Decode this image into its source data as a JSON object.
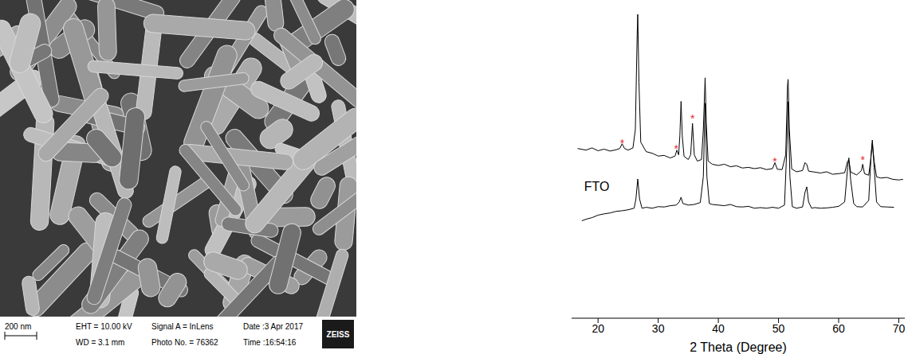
{
  "image": {
    "type": "micrograph",
    "scale_bar": "200 nm",
    "info": [
      [
        "EHT = 10.00 kV",
        "WD = 3.1 mm"
      ],
      [
        "Signal A = InLens",
        "Photo No. = 76362"
      ],
      [
        "Date :3 Apr 2017",
        "Time :16:54:16"
      ]
    ],
    "logo": "ZEISS"
  },
  "chart_data": {
    "type": "line",
    "x_label": "2 Theta (Degree)",
    "xlim": [
      15.6,
      71
    ],
    "xticks": [
      20,
      30,
      40,
      50,
      60,
      70
    ],
    "ylim": [
      0,
      100
    ],
    "grid": false,
    "tick_labels": "x",
    "series": [
      {
        "color": "#000000",
        "x": [
          16.6,
          18,
          19,
          20,
          21,
          22,
          23,
          23.6,
          24,
          24.4,
          25,
          25.8,
          26.2,
          26.5,
          26.6,
          26.8,
          27.1,
          28,
          29,
          30,
          31,
          32,
          32.8,
          33.1,
          33.4,
          33.6,
          33.8,
          34,
          34.3,
          35,
          35.4,
          35.7,
          36,
          36.5,
          37.2,
          37.5,
          37.8,
          38,
          38.3,
          39,
          40,
          41,
          42,
          43,
          44,
          45,
          46,
          47,
          48,
          49,
          49.4,
          49.8,
          50.6,
          51.2,
          51.5,
          51.6,
          51.8,
          52.2,
          53,
          54,
          54.4,
          54.7,
          55,
          56,
          57,
          58,
          59,
          60,
          61,
          61.5,
          61.7,
          62,
          63,
          63.8,
          64,
          64.3,
          65,
          65.3,
          65.6,
          65.9,
          66.3,
          67,
          68,
          69,
          70,
          70.7
        ],
        "values": [
          54,
          53.5,
          54.2,
          53.3,
          53.8,
          53.2,
          53.6,
          54,
          55.5,
          54,
          53.5,
          54.2,
          60,
          90,
          96.7,
          75,
          56,
          53,
          52.5,
          51.6,
          51.8,
          51,
          51.6,
          53.5,
          52,
          58,
          69,
          58,
          51.5,
          50.5,
          52,
          62,
          52,
          50,
          50.5,
          60,
          76.5,
          62,
          50,
          49,
          48.6,
          49,
          48.2,
          48.5,
          47.8,
          48,
          47.6,
          47.9,
          47.3,
          47.6,
          49.5,
          47.4,
          47.3,
          52,
          74,
          76,
          60,
          47.5,
          46.6,
          47,
          49.5,
          49,
          46.8,
          46.5,
          46.2,
          46.6,
          45.8,
          46,
          46.3,
          50,
          50.2,
          46.5,
          45.6,
          47,
          49,
          46,
          45.5,
          50,
          55.7,
          50,
          45,
          44.6,
          44.8,
          44.2,
          44,
          44.2
        ]
      },
      {
        "color": "#000000",
        "x": [
          17.3,
          18,
          19,
          20,
          21,
          22,
          23,
          24,
          25,
          26,
          26.3,
          26.6,
          26.9,
          27.3,
          28,
          29,
          30,
          31,
          32,
          33,
          33.5,
          33.8,
          34.1,
          35,
          36,
          37,
          37.5,
          37.8,
          38.1,
          38.5,
          39,
          40,
          41,
          42,
          43,
          44,
          45,
          46,
          47,
          48,
          49,
          50,
          51,
          51.4,
          51.6,
          51.9,
          52.3,
          53,
          54,
          54.4,
          54.7,
          55,
          55.5,
          56,
          57,
          58,
          59,
          60,
          61,
          61.5,
          61.7,
          62,
          62.5,
          63,
          64,
          65,
          65.4,
          65.6,
          65.9,
          66.3,
          67,
          68,
          69.2
        ],
        "values": [
          31,
          31.5,
          32,
          32.8,
          33.2,
          33.5,
          34,
          34.2,
          34.5,
          35,
          38,
          44.3,
          38,
          35,
          35.3,
          35,
          35.5,
          35.4,
          35.8,
          36,
          37,
          38.5,
          36.5,
          36,
          36.2,
          36.8,
          45,
          68.4,
          45,
          36.5,
          36.2,
          36,
          35.8,
          36.2,
          35.5,
          35.4,
          35.6,
          35,
          35.2,
          35,
          35.3,
          35,
          36,
          55,
          68.9,
          45,
          35.5,
          35,
          35.4,
          40,
          41.8,
          37,
          35,
          35.2,
          35,
          35.1,
          35.3,
          35.6,
          37,
          48,
          51,
          44,
          36.5,
          35.5,
          35.4,
          37.5,
          52,
          56.7,
          48,
          37,
          35.5,
          35.4,
          35.3
        ]
      }
    ],
    "annotations": [
      {
        "text": "FTO",
        "x": 19.8,
        "y": 42,
        "color": "#000000"
      },
      {
        "text": "*",
        "x": 24,
        "y": 55.7,
        "color": "#e8262b"
      },
      {
        "text": "*",
        "x": 33,
        "y": 54,
        "color": "#e8262b"
      },
      {
        "text": "*",
        "x": 35.7,
        "y": 63.5,
        "color": "#e8262b"
      },
      {
        "text": "*",
        "x": 49.4,
        "y": 50,
        "color": "#e8262b"
      },
      {
        "text": "*",
        "x": 64,
        "y": 50.5,
        "color": "#e8262b"
      }
    ]
  }
}
